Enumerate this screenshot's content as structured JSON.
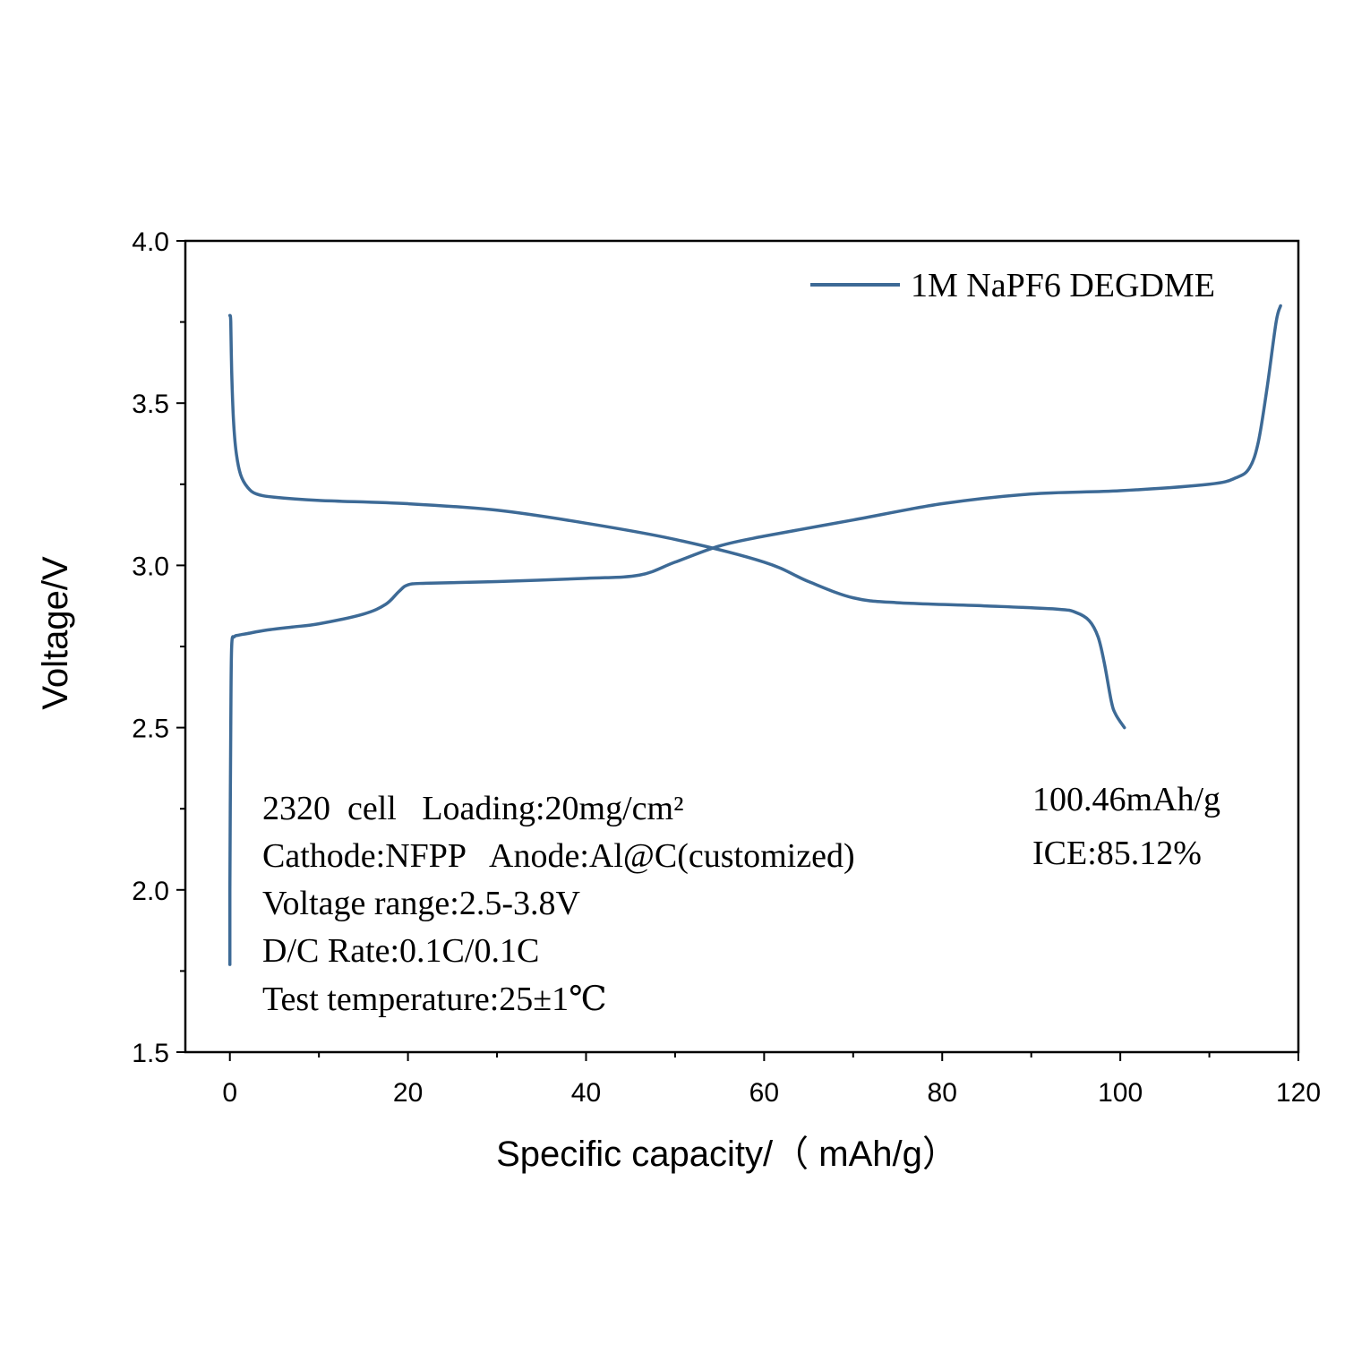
{
  "chart_data": {
    "type": "line",
    "xlabel": "Specific capacity/（ mAh/g）",
    "ylabel": "Voltage/V",
    "xlim": [
      -5,
      120
    ],
    "ylim": [
      1.5,
      4.0
    ],
    "x_ticks": [
      0,
      20,
      40,
      60,
      80,
      100,
      120
    ],
    "x_tick_labels": [
      "0",
      "20",
      "40",
      "60",
      "80",
      "100",
      "120"
    ],
    "y_ticks": [
      1.5,
      2.0,
      2.5,
      3.0,
      3.5,
      4.0
    ],
    "y_tick_labels": [
      "1.5",
      "2.0",
      "2.5",
      "3.0",
      "3.5",
      "4.0"
    ],
    "line_color": "#3d6a96",
    "legend": {
      "position": "top-right",
      "label": "1M NaPF6 DEGDME"
    },
    "series": [
      {
        "x": [
          0.0,
          0.0,
          0.1,
          0.2,
          0.5,
          1.0,
          2.0,
          4.0,
          7.0,
          10.0,
          15.0,
          17.5,
          19.0,
          20.0,
          22.0,
          30.0,
          40.0,
          46.0,
          50.0,
          55.0,
          60.0,
          70.0,
          80.0,
          90.0,
          100.0,
          110.0,
          113.0,
          114.5,
          115.5,
          116.5,
          117.5,
          118.0
        ],
        "values": [
          1.77,
          2.0,
          2.5,
          2.75,
          2.78,
          2.785,
          2.79,
          2.8,
          2.81,
          2.82,
          2.85,
          2.88,
          2.92,
          2.94,
          2.945,
          2.95,
          2.96,
          2.97,
          3.01,
          3.06,
          3.09,
          3.14,
          3.19,
          3.22,
          3.23,
          3.25,
          3.27,
          3.3,
          3.38,
          3.55,
          3.75,
          3.8
        ]
      },
      {
        "x": [
          0.0,
          0.1,
          0.2,
          0.4,
          0.7,
          1.2,
          2.0,
          3.0,
          5.0,
          10.0,
          20.0,
          30.0,
          40.0,
          50.0,
          60.0,
          65.0,
          70.0,
          75.0,
          85.0,
          93.0,
          95.0,
          96.5,
          97.5,
          98.2,
          99.0,
          99.5,
          100.46
        ],
        "values": [
          3.77,
          3.75,
          3.6,
          3.45,
          3.35,
          3.28,
          3.24,
          3.22,
          3.21,
          3.2,
          3.19,
          3.17,
          3.13,
          3.08,
          3.01,
          2.95,
          2.9,
          2.885,
          2.875,
          2.865,
          2.855,
          2.83,
          2.78,
          2.7,
          2.58,
          2.54,
          2.5
        ]
      }
    ],
    "annotations_left": [
      "2320  cell   Loading:20mg/cm²",
      "Cathode:NFPP   Anode:Al@C(customized)",
      "Voltage range:2.5-3.8V",
      "D/C Rate:0.1C/0.1C",
      "Test temperature:25±1℃"
    ],
    "annotations_right": [
      "100.46mAh/g",
      "ICE:85.12%"
    ]
  }
}
